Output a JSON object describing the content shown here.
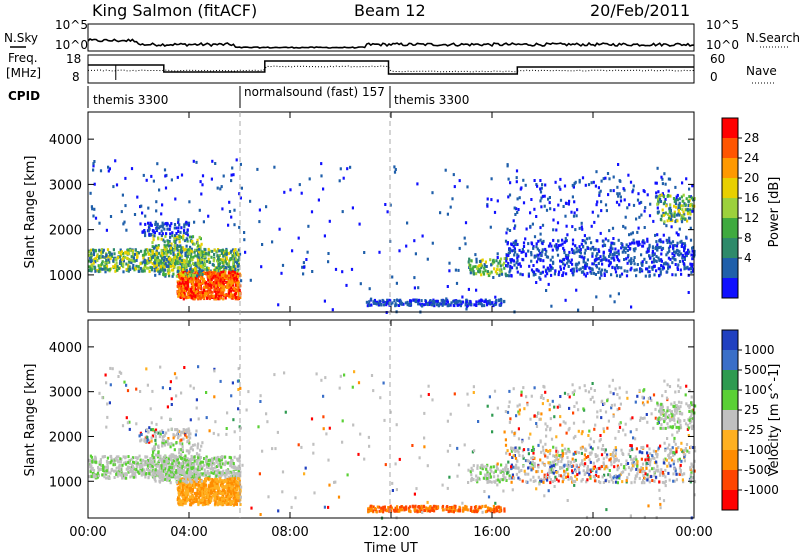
{
  "header": {
    "station": "King Salmon (fitACF)",
    "beam": "Beam 12",
    "date": "20/Feb/2011"
  },
  "side_labels": {
    "nsky": "N.Sky",
    "freq": "Freq.",
    "freq_unit": "[MHz]",
    "cpid": "CPID",
    "nsearch": "N.Search",
    "nave": "Nave",
    "noise_tick_hi": "10^5",
    "noise_tick_lo": "10^0",
    "freq_ticks": [
      "18",
      "8"
    ],
    "nave_ticks": [
      "60",
      "0"
    ]
  },
  "cpid_segments": [
    {
      "label": "themis 3300",
      "start_hr": 0.0,
      "end_hr": 6.0
    },
    {
      "label": "normalsound (fast) 157",
      "start_hr": 6.0,
      "end_hr": 11.9
    },
    {
      "label": "themis 3300",
      "start_hr": 11.9,
      "end_hr": 24.0
    }
  ],
  "chart_data": [
    {
      "type": "heatmap",
      "quantity": "Power",
      "ylabel": "Slant Range [km]",
      "xlabel": "",
      "x_range_hr": [
        0,
        24
      ],
      "ylim": [
        180,
        4600
      ],
      "yticks": [
        1000,
        2000,
        3000,
        4000
      ],
      "colorbar": {
        "label": "Power [dB]",
        "ticks": [
          "28",
          "24",
          "20",
          "16",
          "12",
          "8",
          "4"
        ],
        "colors": [
          "#ff0000",
          "#ff5500",
          "#ff9900",
          "#e8d000",
          "#9cd13c",
          "#3faa3f",
          "#2e8a6a",
          "#1f5faa",
          "#1010ff"
        ]
      }
    },
    {
      "type": "heatmap",
      "quantity": "Velocity",
      "ylabel": "Slant Range [km]",
      "xlabel": "Time UT",
      "x_range_hr": [
        0,
        24
      ],
      "ylim": [
        180,
        4600
      ],
      "yticks": [
        1000,
        2000,
        3000,
        4000
      ],
      "xticks": [
        "00:00",
        "04:00",
        "08:00",
        "12:00",
        "16:00",
        "20:00",
        "00:00"
      ],
      "colorbar": {
        "label": "Velocity [m s^-1]",
        "ticks": [
          "1000",
          "500",
          "100",
          "25",
          "-25",
          "-100",
          "-500",
          "-1000"
        ],
        "colors": [
          "#2040c0",
          "#3a6fc8",
          "#2e9a50",
          "#5ad035",
          "#c0c0c0",
          "#ffb020",
          "#ff8c00",
          "#ff4500",
          "#ff0000"
        ]
      }
    }
  ]
}
